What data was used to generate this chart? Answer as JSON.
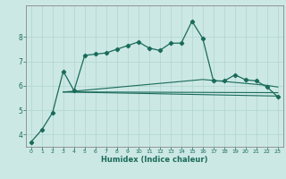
{
  "title": "",
  "xlabel": "Humidex (Indice chaleur)",
  "ylabel": "",
  "background_color": "#cce8e5",
  "grid_color": "#aed4cf",
  "line_color": "#1a6b5a",
  "xlim": [
    -0.5,
    23.5
  ],
  "ylim": [
    3.5,
    9.3
  ],
  "xticks": [
    0,
    1,
    2,
    3,
    4,
    5,
    6,
    7,
    8,
    9,
    10,
    11,
    12,
    13,
    14,
    15,
    16,
    17,
    18,
    19,
    20,
    21,
    22,
    23
  ],
  "yticks": [
    4,
    5,
    6,
    7,
    8
  ],
  "series1_x": [
    0,
    1,
    2,
    3,
    4,
    5,
    6,
    7,
    8,
    9,
    10,
    11,
    12,
    13,
    14,
    15,
    16,
    17,
    18,
    19,
    20,
    21,
    22,
    23
  ],
  "series1_y": [
    3.7,
    4.2,
    4.9,
    6.6,
    5.8,
    7.25,
    7.3,
    7.35,
    7.5,
    7.65,
    7.8,
    7.55,
    7.45,
    7.75,
    7.75,
    8.65,
    7.95,
    6.2,
    6.2,
    6.45,
    6.25,
    6.2,
    5.95,
    5.55
  ],
  "series2_x": [
    3,
    4,
    5,
    6,
    7,
    8,
    9,
    10,
    11,
    12,
    13,
    14,
    15,
    16,
    17,
    18,
    19,
    20,
    21,
    22,
    23
  ],
  "series2_y": [
    5.75,
    5.78,
    5.82,
    5.86,
    5.9,
    5.94,
    5.98,
    6.02,
    6.06,
    6.1,
    6.14,
    6.18,
    6.22,
    6.26,
    6.22,
    6.18,
    6.14,
    6.1,
    6.06,
    6.02,
    5.95
  ],
  "series3_x": [
    3,
    23
  ],
  "series3_y": [
    5.75,
    5.58
  ],
  "series4_x": [
    3,
    23
  ],
  "series4_y": [
    5.75,
    5.72
  ]
}
